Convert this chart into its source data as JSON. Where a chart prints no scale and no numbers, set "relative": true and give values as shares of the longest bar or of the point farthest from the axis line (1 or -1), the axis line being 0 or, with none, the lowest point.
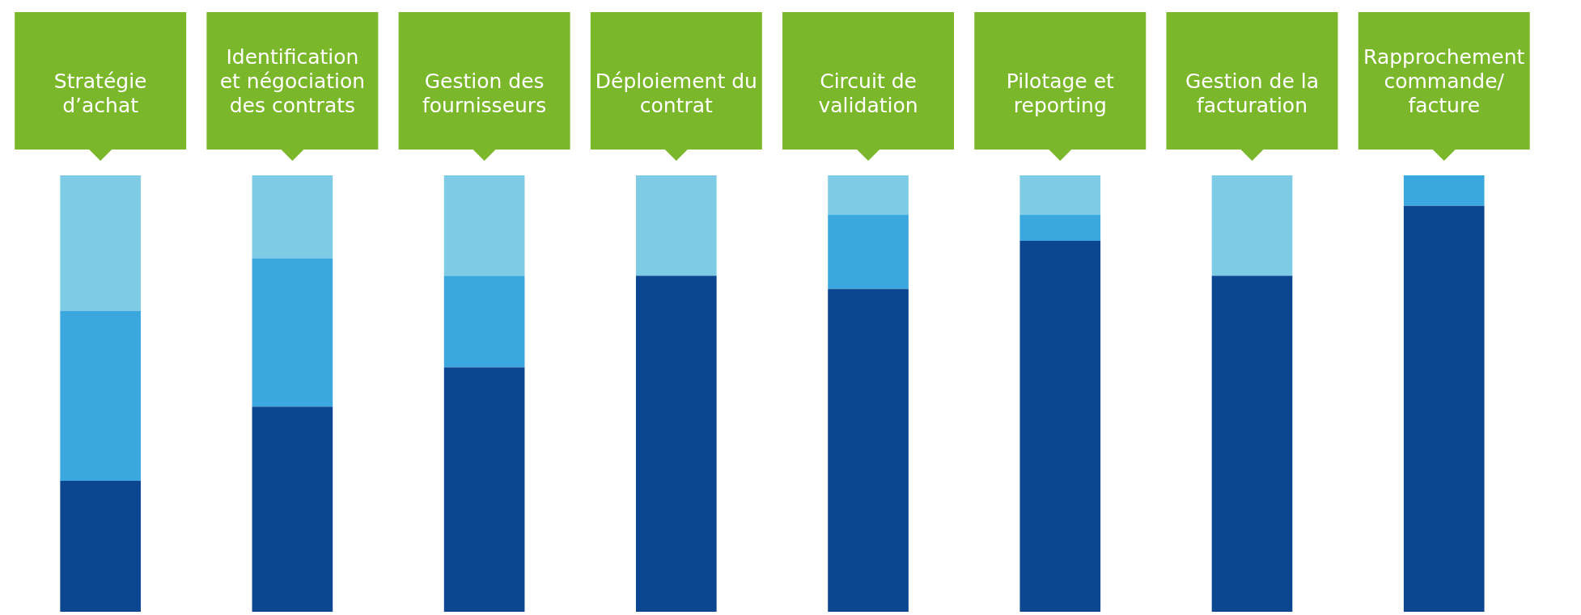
{
  "chart_data": {
    "type": "bar",
    "stacked": true,
    "relative": true,
    "legend": false,
    "grid": false,
    "categories": [
      "Stratégie d’achat",
      "Identification et négociation des contrats",
      "Gestion des fournisseurs",
      "Déploiement du contrat",
      "Circuit de validation",
      "Pilotage et reporting",
      "Gestion de la facturation",
      "Rapprochement commande/ facture"
    ],
    "series": [
      {
        "color": "#0b4690",
        "values": [
          0.3,
          0.47,
          0.56,
          0.77,
          0.74,
          0.85,
          0.77,
          0.93
        ]
      },
      {
        "color": "#3aa8df",
        "values": [
          0.39,
          0.34,
          0.21,
          null,
          0.17,
          0.06,
          null,
          0.07
        ]
      },
      {
        "color": "#7ecbe6",
        "values": [
          0.31,
          0.19,
          0.23,
          0.23,
          0.09,
          0.09,
          0.23,
          null
        ]
      }
    ]
  }
}
